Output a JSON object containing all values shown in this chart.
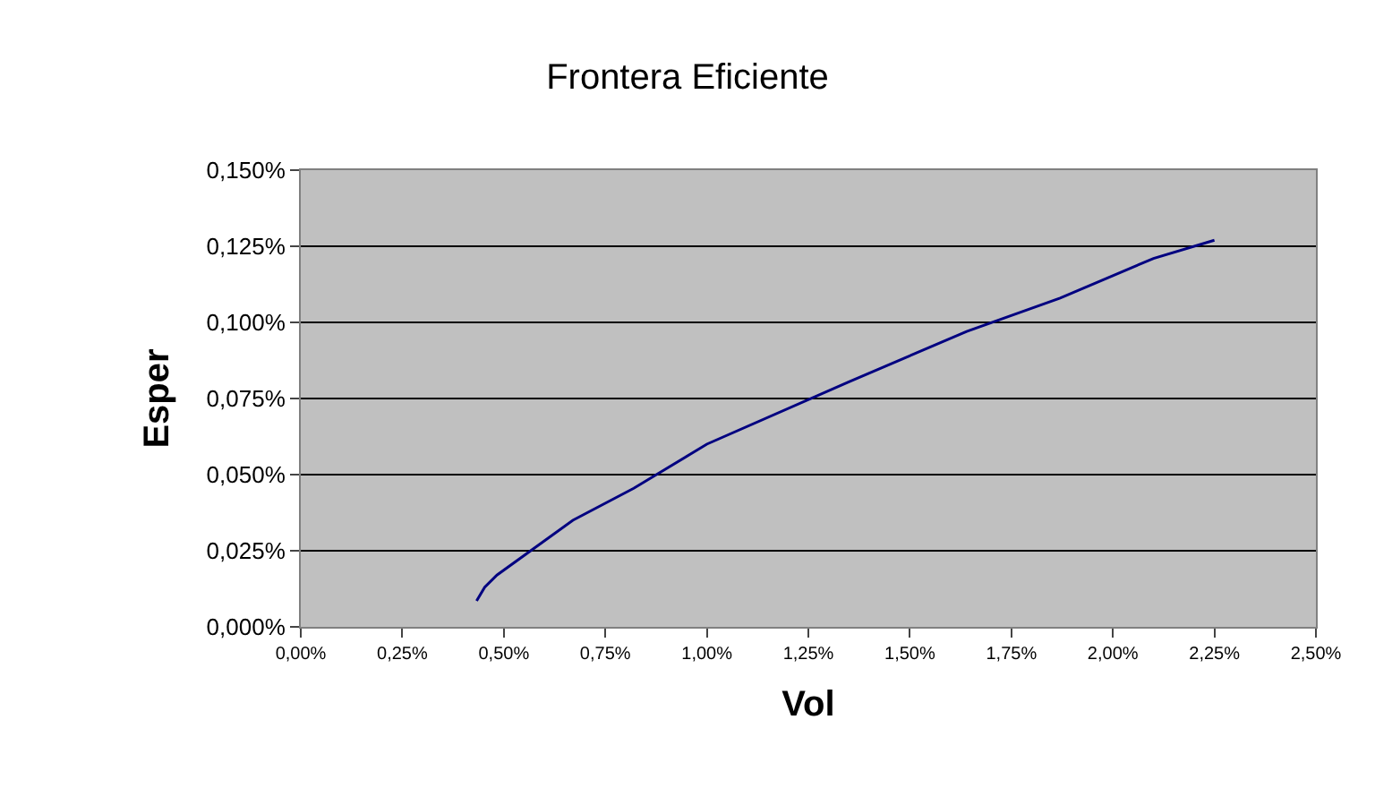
{
  "chart_data": {
    "type": "line",
    "title": "Frontera Eficiente",
    "xlabel": "Vol",
    "ylabel": "Esper",
    "x": [
      0.433,
      0.453,
      0.483,
      0.67,
      0.82,
      1.0,
      1.35,
      1.64,
      1.87,
      2.1,
      2.25
    ],
    "series": [
      {
        "color": "#000080",
        "values": [
          0.0085,
          0.013,
          0.017,
          0.035,
          0.0455,
          0.06,
          0.0805,
          0.097,
          0.108,
          0.121,
          0.127
        ]
      }
    ],
    "xlim": [
      0,
      2.5
    ],
    "ylim": [
      0,
      0.15
    ],
    "xticks": [
      {
        "value": 0,
        "label": "0,00%"
      },
      {
        "value": 0.25,
        "label": "0,25%"
      },
      {
        "value": 0.5,
        "label": "0,50%"
      },
      {
        "value": 0.75,
        "label": "0,75%"
      },
      {
        "value": 1,
        "label": "1,00%"
      },
      {
        "value": 1.25,
        "label": "1,25%"
      },
      {
        "value": 1.5,
        "label": "1,50%"
      },
      {
        "value": 1.75,
        "label": "1,75%"
      },
      {
        "value": 2,
        "label": "2,00%"
      },
      {
        "value": 2.25,
        "label": "2,25%"
      },
      {
        "value": 2.5,
        "label": "2,50%"
      }
    ],
    "yticks": [
      {
        "value": 0,
        "label": "0,000%"
      },
      {
        "value": 0.025,
        "label": "0,025%"
      },
      {
        "value": 0.05,
        "label": "0,050%"
      },
      {
        "value": 0.075,
        "label": "0,075%"
      },
      {
        "value": 0.1,
        "label": "0,100%"
      },
      {
        "value": 0.125,
        "label": "0,125%"
      },
      {
        "value": 0.15,
        "label": "0,150%"
      }
    ],
    "grid": "y",
    "marker": "none",
    "line_style": "solid"
  }
}
